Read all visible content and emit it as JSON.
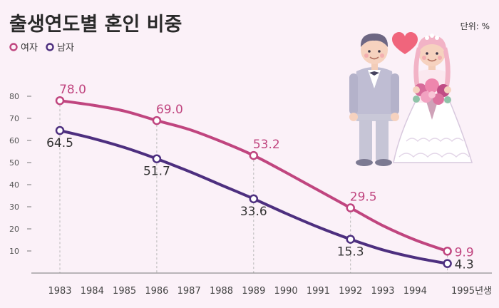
{
  "header": {
    "title": "출생연도별 혼인 비중",
    "unit": "단위: %"
  },
  "colors": {
    "female": "#c0457f",
    "male": "#4d2f7f",
    "background": "#fbf1f8",
    "guide": "#b8b8b8",
    "axis": "#777777",
    "heart": "#f0657c"
  },
  "illustration": {
    "groom_icon": "groom-figure",
    "bride_icon": "bride-figure",
    "heart_icon": "heart-icon"
  },
  "chart_data": {
    "type": "line",
    "title": "출생연도별 혼인 비중",
    "xlabel": "",
    "ylabel": "",
    "categories": [
      "1983",
      "1984",
      "1985",
      "1986",
      "1987",
      "1988",
      "1989",
      "1990",
      "1991",
      "1992",
      "1993",
      "1994",
      "1995년생"
    ],
    "yticks": [
      10,
      20,
      30,
      40,
      50,
      60,
      70,
      80
    ],
    "ylim": [
      0,
      85
    ],
    "legend_position": "top-left",
    "grid": false,
    "series": [
      {
        "name": "여자",
        "color": "#c0457f",
        "values": [
          78.0,
          76.0,
          73.3,
          69.0,
          65.0,
          59.5,
          53.2,
          45.5,
          37.5,
          29.5,
          21.5,
          15.0,
          9.9
        ],
        "labeled_points": [
          0,
          3,
          6,
          9,
          12
        ],
        "labels": [
          "78.0",
          "69.0",
          "53.2",
          "29.5",
          "9.9"
        ]
      },
      {
        "name": "남자",
        "color": "#4d2f7f",
        "values": [
          64.5,
          61.0,
          56.8,
          51.7,
          46.0,
          39.8,
          33.6,
          27.0,
          20.8,
          15.3,
          10.5,
          7.0,
          4.3
        ],
        "labeled_points": [
          0,
          3,
          6,
          9,
          12
        ],
        "labels": [
          "64.5",
          "51.7",
          "33.6",
          "15.3",
          "4.3"
        ]
      }
    ]
  }
}
